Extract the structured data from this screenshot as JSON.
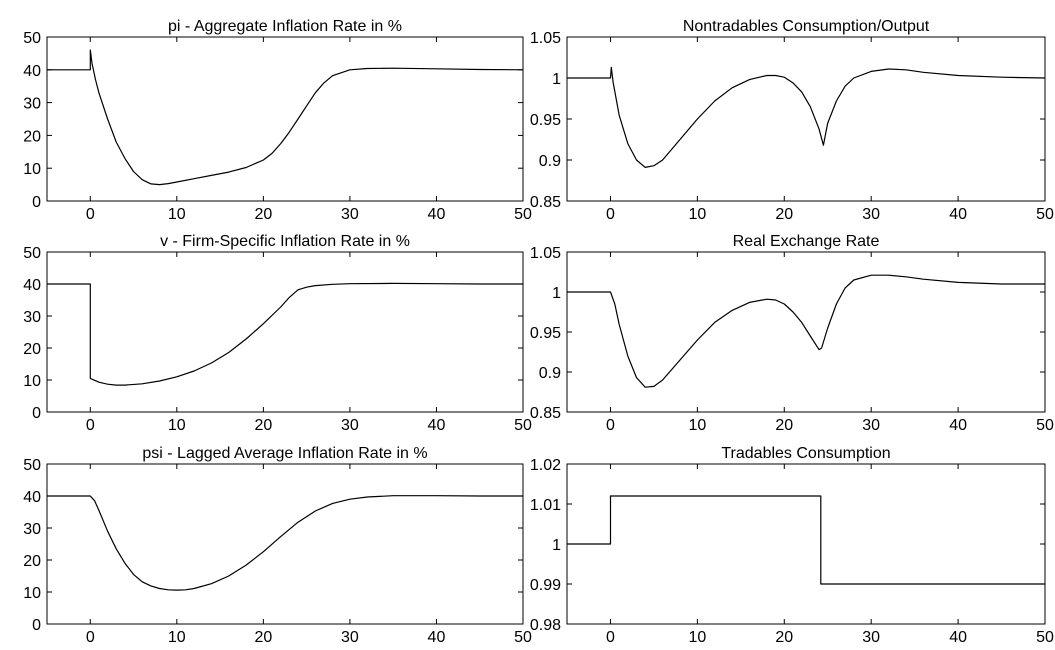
{
  "chart_data": [
    {
      "type": "line",
      "title": "pi - Aggregate Inflation Rate in %",
      "xlim": [
        -5,
        50
      ],
      "ylim": [
        0,
        50
      ],
      "xticks": [
        "0",
        "10",
        "20",
        "30",
        "40",
        "50"
      ],
      "yticks": [
        "0",
        "10",
        "20",
        "30",
        "40",
        "50"
      ],
      "series": [
        {
          "x": [
            -5,
            0,
            0,
            0.2,
            0.6,
            1,
            2,
            3,
            4,
            5,
            6,
            7,
            8,
            9,
            10,
            12,
            14,
            16,
            18,
            20,
            21,
            22,
            23,
            24,
            25,
            26,
            27,
            28,
            30,
            32,
            35,
            40,
            45,
            50
          ],
          "y": [
            40,
            40,
            46,
            42,
            37,
            33,
            25,
            18,
            13,
            9,
            6.5,
            5.2,
            5.0,
            5.3,
            5.8,
            6.8,
            7.8,
            8.8,
            10.2,
            12.5,
            14.5,
            17.5,
            21,
            25,
            29,
            33,
            36,
            38.2,
            40,
            40.4,
            40.5,
            40.3,
            40.1,
            40
          ]
        }
      ]
    },
    {
      "type": "line",
      "title": "Nontradables Consumption/Output",
      "xlim": [
        -5,
        50
      ],
      "ylim": [
        0.85,
        1.05
      ],
      "xticks": [
        "0",
        "10",
        "20",
        "30",
        "40",
        "50"
      ],
      "yticks": [
        "0.85",
        "0.9",
        "0.95",
        "1",
        "1.05"
      ],
      "series": [
        {
          "x": [
            -5,
            0,
            0.1,
            0.3,
            1,
            2,
            3,
            4,
            5,
            6,
            8,
            10,
            12,
            14,
            16,
            18,
            19,
            20,
            21,
            22,
            23,
            24,
            24.5,
            25,
            26,
            27,
            28,
            30,
            32,
            34,
            36,
            40,
            45,
            50
          ],
          "y": [
            1.0,
            1.0,
            1.013,
            0.995,
            0.955,
            0.92,
            0.9,
            0.891,
            0.893,
            0.9,
            0.925,
            0.95,
            0.972,
            0.988,
            0.998,
            1.003,
            1.003,
            1.001,
            0.994,
            0.983,
            0.965,
            0.938,
            0.918,
            0.945,
            0.972,
            0.99,
            1.0,
            1.008,
            1.011,
            1.01,
            1.007,
            1.003,
            1.001,
            1.0
          ]
        }
      ]
    },
    {
      "type": "line",
      "title": "v - Firm-Specific Inflation Rate in %",
      "xlim": [
        -5,
        50
      ],
      "ylim": [
        0,
        50
      ],
      "xticks": [
        "0",
        "10",
        "20",
        "30",
        "40",
        "50"
      ],
      "yticks": [
        "0",
        "10",
        "20",
        "30",
        "40",
        "50"
      ],
      "series": [
        {
          "x": [
            -5,
            0,
            0,
            1,
            2,
            3,
            4,
            6,
            8,
            10,
            12,
            14,
            16,
            18,
            20,
            22,
            23,
            24,
            25,
            26,
            28,
            30,
            35,
            40,
            45,
            50
          ],
          "y": [
            40,
            40,
            10.5,
            9.3,
            8.7,
            8.4,
            8.4,
            8.8,
            9.7,
            11,
            12.8,
            15.3,
            18.6,
            22.8,
            27.6,
            32.8,
            35.8,
            38.2,
            39,
            39.5,
            39.9,
            40.1,
            40.2,
            40.1,
            40,
            40
          ]
        }
      ]
    },
    {
      "type": "line",
      "title": "Real Exchange Rate",
      "xlim": [
        -5,
        50
      ],
      "ylim": [
        0.85,
        1.05
      ],
      "xticks": [
        "0",
        "10",
        "20",
        "30",
        "40",
        "50"
      ],
      "yticks": [
        "0.85",
        "0.9",
        "0.95",
        "1",
        "1.05"
      ],
      "series": [
        {
          "x": [
            -5,
            0,
            0.5,
            1,
            2,
            3,
            4,
            5,
            6,
            8,
            10,
            12,
            14,
            16,
            18,
            19,
            20,
            21,
            22,
            23,
            24,
            24.3,
            25,
            26,
            27,
            28,
            30,
            32,
            34,
            36,
            40,
            45,
            50
          ],
          "y": [
            1.0,
            1.0,
            0.985,
            0.96,
            0.92,
            0.893,
            0.881,
            0.882,
            0.89,
            0.915,
            0.94,
            0.962,
            0.977,
            0.987,
            0.991,
            0.99,
            0.985,
            0.975,
            0.962,
            0.945,
            0.928,
            0.93,
            0.955,
            0.985,
            1.005,
            1.015,
            1.021,
            1.021,
            1.019,
            1.016,
            1.012,
            1.01,
            1.01
          ]
        }
      ]
    },
    {
      "type": "line",
      "title": "psi - Lagged Average Inflation Rate in %",
      "xlim": [
        -5,
        50
      ],
      "ylim": [
        0,
        50
      ],
      "xticks": [
        "0",
        "10",
        "20",
        "30",
        "40",
        "50"
      ],
      "yticks": [
        "0",
        "10",
        "20",
        "30",
        "40",
        "50"
      ],
      "series": [
        {
          "x": [
            -5,
            0,
            0.5,
            1,
            2,
            3,
            4,
            5,
            6,
            7,
            8,
            9,
            10,
            11,
            12,
            14,
            16,
            18,
            20,
            22,
            24,
            26,
            28,
            30,
            32,
            35,
            40,
            45,
            50
          ],
          "y": [
            40,
            40,
            38.5,
            35.5,
            29,
            23.5,
            19,
            15.5,
            13.2,
            11.9,
            11.1,
            10.7,
            10.6,
            10.7,
            11.1,
            12.6,
            15,
            18.4,
            22.6,
            27.3,
            31.8,
            35.3,
            37.7,
            39,
            39.7,
            40.1,
            40.1,
            40,
            40
          ]
        }
      ]
    },
    {
      "type": "line",
      "title": "Tradables Consumption",
      "xlim": [
        -5,
        50
      ],
      "ylim": [
        0.98,
        1.02
      ],
      "xticks": [
        "0",
        "10",
        "20",
        "30",
        "40",
        "50"
      ],
      "yticks": [
        "0.98",
        "0.99",
        "1",
        "1.01",
        "1.02"
      ],
      "series": [
        {
          "x": [
            -5,
            0,
            0,
            24.2,
            24.2,
            50
          ],
          "y": [
            1.0,
            1.0,
            1.012,
            1.012,
            0.99,
            0.99
          ]
        }
      ]
    }
  ]
}
